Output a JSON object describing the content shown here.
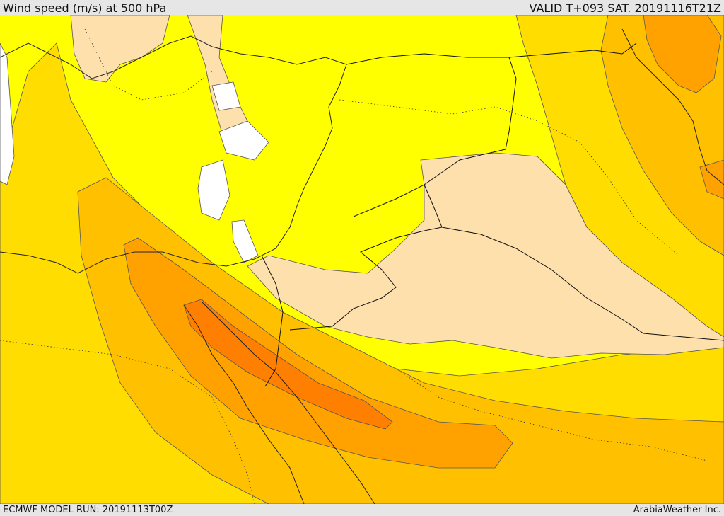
{
  "header": {
    "title": "Wind speed (m/s) at 500 hPa",
    "valid": "VALID T+093 SAT. 20191116T21Z"
  },
  "footer": {
    "model_run": "ECMWF MODEL RUN: 20191113T00Z",
    "credit": "ArabiaWeather Inc."
  },
  "map": {
    "variable": "wind speed at 500 hPa",
    "palette": {
      "calm_white": "#ffffff",
      "peach": "#fde0ac",
      "yellow": "#ffff00",
      "gold": "#ffdd00",
      "amber": "#ffc000",
      "orange": "#ffa200",
      "deep_orange": "#ff8000"
    },
    "line_colors": {
      "contours": "#555555",
      "coastline": "#222222",
      "borders": "#111111"
    }
  }
}
